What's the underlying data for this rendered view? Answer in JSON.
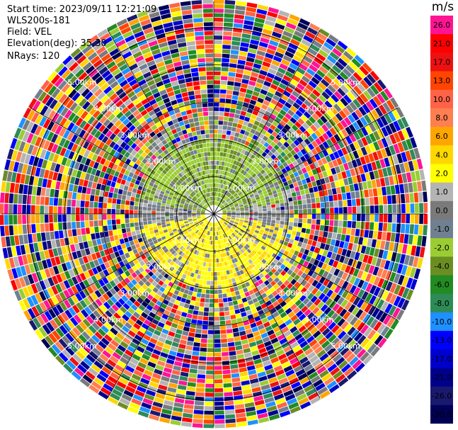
{
  "header": {
    "start_time": "Start time: 2023/09/11 12:21:09",
    "site": "WLS200s-181",
    "field": "Field: VEL",
    "elevation": "Elevation(deg): 35.30",
    "nrays": "NRays: 120"
  },
  "chart_data": {
    "type": "heatmap",
    "projection": "polar-ppi",
    "field": "VEL",
    "units": "m/s",
    "n_rays": 120,
    "max_range_km": 5.7,
    "range_rings_km": [
      1,
      2,
      3,
      4,
      5
    ],
    "ring_labels": [
      {
        "text": "1.00km"
      },
      {
        "text": "2.00km"
      },
      {
        "text": "3.00km"
      },
      {
        "text": "4.00km"
      },
      {
        "text": "5.00km"
      }
    ],
    "colorbar": {
      "label": "m/s",
      "bands": [
        {
          "value": "26.0",
          "color": "#ff1493"
        },
        {
          "value": "21.0",
          "color": "#ff0000"
        },
        {
          "value": "17.0",
          "color": "#ee1111"
        },
        {
          "value": "13.0",
          "color": "#ff4500"
        },
        {
          "value": "10.0",
          "color": "#ff6347"
        },
        {
          "value": "8.0",
          "color": "#ff7f50"
        },
        {
          "value": "6.0",
          "color": "#ffa500"
        },
        {
          "value": "4.0",
          "color": "#ffd700"
        },
        {
          "value": "2.0",
          "color": "#ffff00"
        },
        {
          "value": "1.0",
          "color": "#b4b4b4"
        },
        {
          "value": "0.0",
          "color": "#7a7a7a"
        },
        {
          "value": "-1.0",
          "color": "#708090"
        },
        {
          "value": "-2.0",
          "color": "#9acd32"
        },
        {
          "value": "-4.0",
          "color": "#6b8e23"
        },
        {
          "value": "-6.0",
          "color": "#228b22"
        },
        {
          "value": "-8.0",
          "color": "#2e8b57"
        },
        {
          "value": "-10.0",
          "color": "#1e90ff"
        },
        {
          "value": "-13.0",
          "color": "#0000ff"
        },
        {
          "value": "-17.0",
          "color": "#0000cd"
        },
        {
          "value": "-21.0",
          "color": "#00008b"
        },
        {
          "value": "-26.0",
          "color": "#191970"
        },
        {
          "value": "-30.0",
          "color": "#000055"
        }
      ]
    },
    "pattern": {
      "near_range_km": [
        0.3,
        1.8
      ],
      "north_near_field": "-2.0 to -4.0 m/s (green) with 0.0 gray",
      "south_near_field": "2.0 to 4.0 m/s (yellow) with 0.0 gray",
      "far_field_noise_start_km": 2.0,
      "far_field": "random multicolor noise across full scale"
    },
    "grid": true
  }
}
